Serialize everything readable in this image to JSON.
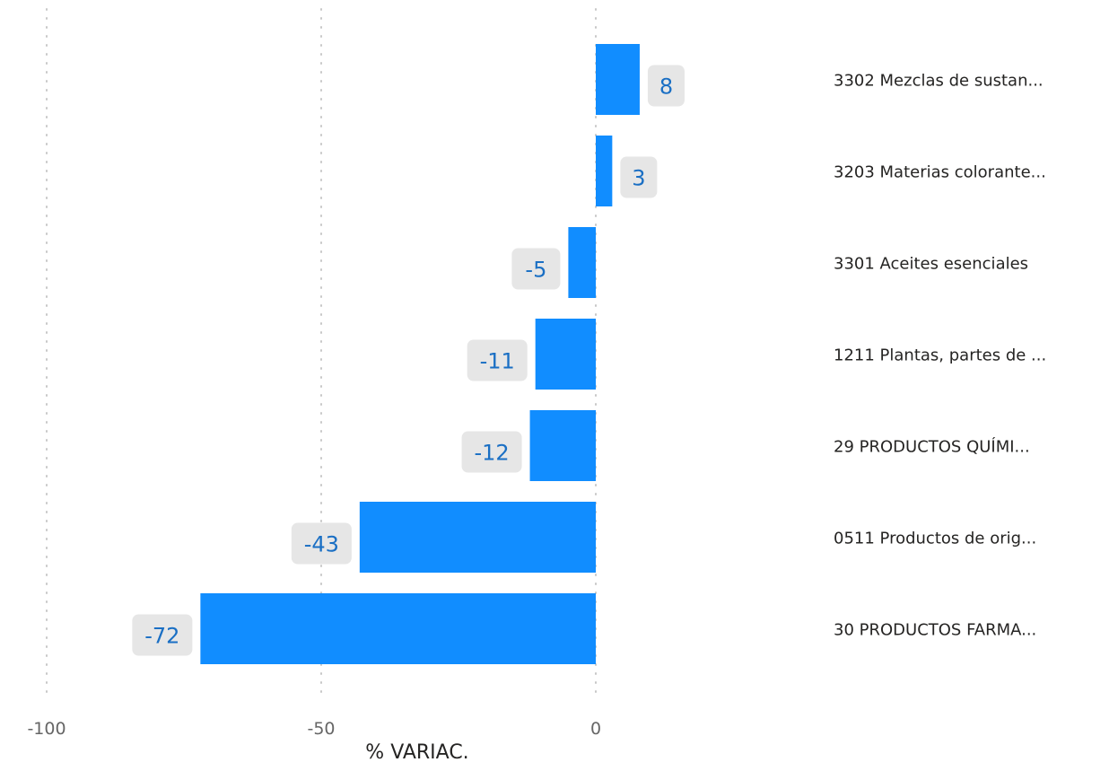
{
  "chart_data": {
    "type": "bar",
    "orientation": "horizontal",
    "xlabel": "% VARIAC.",
    "xlim": [
      -100,
      0
    ],
    "xticks": [
      -100,
      -50,
      0
    ],
    "grid": true,
    "bar_color": "#118dff",
    "label_color": "#1a6fc4",
    "label_bg_color": "#e6e6e6",
    "categories": [
      "3302 Mezclas de sustan...",
      "3203 Materias colorante...",
      "3301 Aceites esenciales",
      "1211 Plantas, partes de ...",
      "29 PRODUCTOS QUÍMI...",
      "0511 Productos de orig...",
      "30 PRODUCTOS FARMA..."
    ],
    "values": [
      8,
      3,
      -5,
      -11,
      -12,
      -43,
      -72
    ]
  }
}
